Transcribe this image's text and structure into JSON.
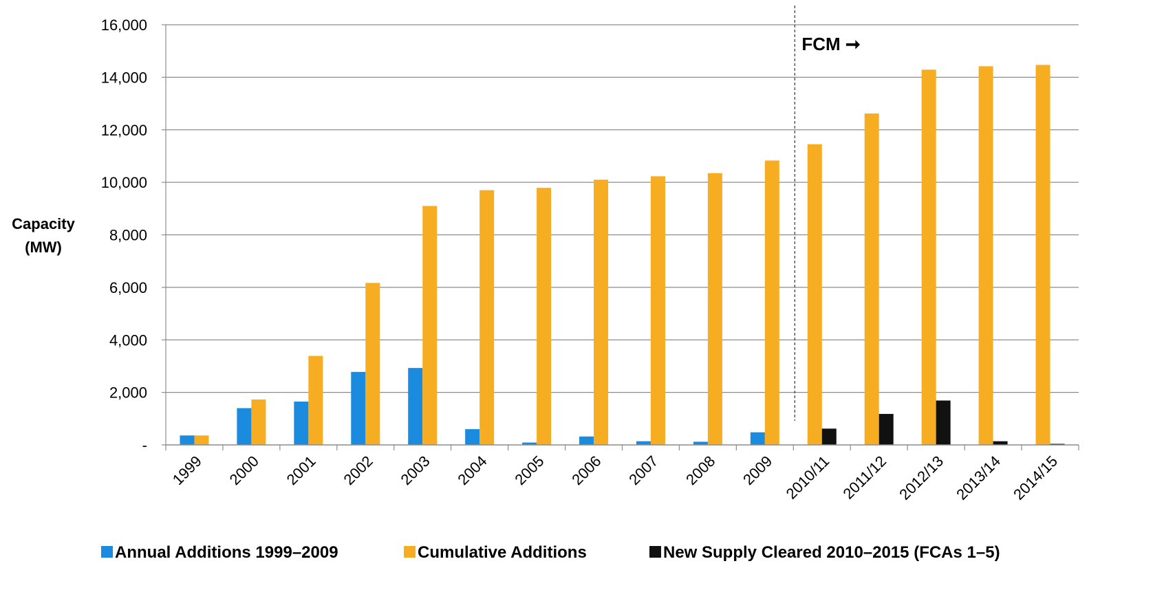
{
  "chart_data": {
    "type": "bar",
    "title": "",
    "ylabel_lines": [
      "Capacity",
      "(MW)"
    ],
    "xlabel": "",
    "ylim": [
      0,
      16000
    ],
    "y_ticks": [
      {
        "value": 0,
        "label": "-"
      },
      {
        "value": 2000,
        "label": "2,000"
      },
      {
        "value": 4000,
        "label": "4,000"
      },
      {
        "value": 6000,
        "label": "6,000"
      },
      {
        "value": 8000,
        "label": "8,000"
      },
      {
        "value": 10000,
        "label": "10,000"
      },
      {
        "value": 12000,
        "label": "12,000"
      },
      {
        "value": 14000,
        "label": "14,000"
      },
      {
        "value": 16000,
        "label": "16,000"
      }
    ],
    "grid": "horizontal",
    "legend_position": "bottom",
    "categories": [
      "1999",
      "2000",
      "2001",
      "2002",
      "2003",
      "2004",
      "2005",
      "2006",
      "2007",
      "2008",
      "2009",
      "2010/11",
      "2011/12",
      "2012/13",
      "2013/14",
      "2014/15"
    ],
    "series": [
      {
        "name": "Annual Additions 1999–2009",
        "color": "#1b8be0",
        "values": [
          360,
          1400,
          1650,
          2780,
          2930,
          600,
          90,
          320,
          140,
          120,
          480,
          null,
          null,
          null,
          null,
          null
        ]
      },
      {
        "name": "Cumulative Additions",
        "color": "#f6ad22",
        "values": [
          360,
          1730,
          3390,
          6170,
          9100,
          9700,
          9790,
          10100,
          10230,
          10350,
          10830,
          11450,
          12620,
          14290,
          14420,
          14470
        ]
      },
      {
        "name": "New Supply Cleared 2010–2015 (FCAs 1–5)",
        "color": "#111111",
        "values": [
          null,
          null,
          null,
          null,
          null,
          null,
          null,
          null,
          null,
          null,
          null,
          620,
          1180,
          1690,
          140,
          40
        ]
      }
    ],
    "annotations": [
      {
        "text": "FCM ➞",
        "type": "divider",
        "after_category": "2009"
      }
    ]
  }
}
